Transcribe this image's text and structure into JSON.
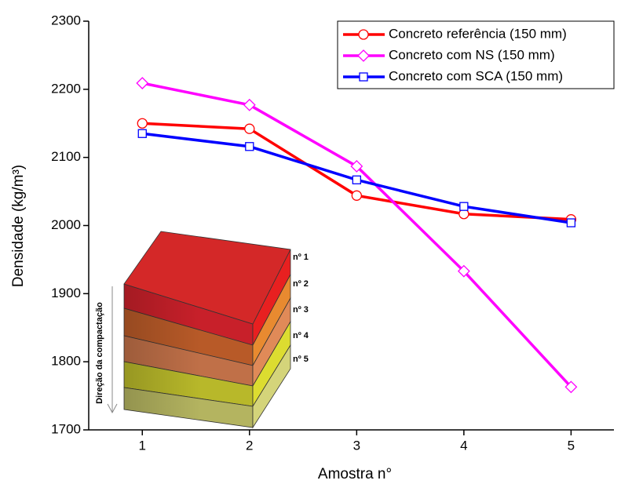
{
  "chart_data": {
    "type": "line",
    "x_label": "Amostra n°",
    "y_label": "Densidade (kg/m³)",
    "x": [
      1,
      2,
      3,
      4,
      5
    ],
    "series": [
      {
        "name": "Concreto referência (150 mm)",
        "color": "#ff0000",
        "marker": "circle",
        "values": [
          2150,
          2142,
          2044,
          2017,
          2009
        ]
      },
      {
        "name": "Concreto com NS (150 mm)",
        "color": "#ff00ff",
        "marker": "diamond",
        "values": [
          2209,
          2177,
          2087,
          1933,
          1763
        ]
      },
      {
        "name": "Concreto com SCA (150 mm)",
        "color": "#0000ff",
        "marker": "square",
        "values": [
          2135,
          2116,
          2067,
          2028,
          2004
        ]
      }
    ],
    "xlim": [
      0.5,
      5.4
    ],
    "xticks": [
      1,
      2,
      3,
      4,
      5
    ],
    "ylim": [
      1700,
      2300
    ],
    "yticks": [
      1700,
      1800,
      1900,
      2000,
      2100,
      2200,
      2300
    ],
    "grid": false,
    "legend": "upper right"
  },
  "inset": {
    "layers": [
      "nº 1",
      "nº 2",
      "nº 3",
      "nº 4",
      "nº 5"
    ],
    "axis_label": "Direção da compactação"
  }
}
